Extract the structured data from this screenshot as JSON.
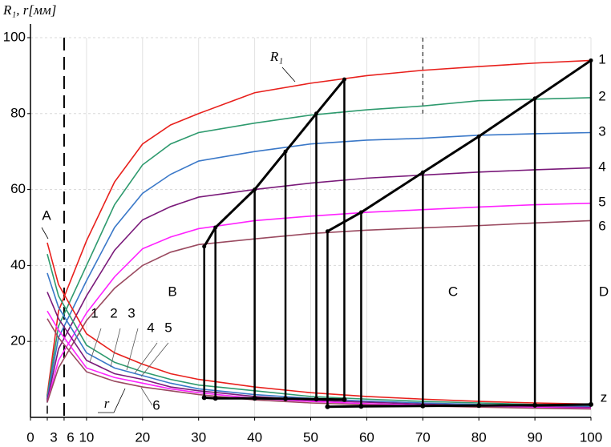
{
  "chart_data": {
    "type": "line",
    "y_label": "R₁, r[мм]",
    "xlim": [
      0,
      100
    ],
    "ylim": [
      0,
      100
    ],
    "xticks": [
      0,
      3,
      6,
      10,
      20,
      30,
      40,
      50,
      60,
      70,
      80,
      90,
      100
    ],
    "yticks": [
      20,
      40,
      60,
      80,
      100
    ],
    "grid": true,
    "x": [
      3,
      5,
      10,
      15,
      20,
      25,
      30,
      40,
      50,
      60,
      70,
      80,
      90,
      100
    ],
    "series": [
      {
        "name": "1",
        "color": "#e8201c",
        "values": [
          6,
          28,
          46.5,
          62,
          72,
          77,
          80,
          85.5,
          88,
          90,
          91.4,
          92.4,
          93.3,
          94
        ]
      },
      {
        "name": "2",
        "color": "#2e9a6e",
        "values": [
          5.5,
          24,
          40,
          56,
          66.5,
          72,
          75,
          77.5,
          79.6,
          81,
          82,
          83.4,
          83.8,
          84.2
        ]
      },
      {
        "name": "3",
        "color": "#3a78c8",
        "values": [
          5,
          21,
          36,
          50,
          59,
          64,
          67.5,
          70,
          72,
          73,
          73.5,
          74.3,
          74.7,
          75
        ]
      },
      {
        "name": "4",
        "color": "#7a1a7a",
        "values": [
          4.5,
          18,
          32,
          44,
          52,
          55.5,
          58,
          60,
          61.7,
          63,
          63.8,
          64.6,
          65.2,
          65.7
        ]
      },
      {
        "name": "5",
        "color": "#ff22ff",
        "values": [
          4,
          15,
          27.5,
          37,
          44.4,
          47.5,
          49.7,
          51.8,
          53,
          54,
          54.7,
          55.4,
          56,
          56.4
        ]
      },
      {
        "name": "6",
        "color": "#9a4a60",
        "values": [
          4,
          13,
          25.5,
          34,
          40,
          43.5,
          45.5,
          47,
          48.4,
          49.3,
          49.9,
          50.5,
          51.2,
          51.8
        ]
      },
      {
        "name": "1",
        "color": "#e8201c",
        "values": [
          46,
          35,
          22,
          17,
          14,
          11.5,
          10,
          8,
          6.5,
          5.5,
          4.8,
          4.2,
          3.8,
          3.5
        ]
      },
      {
        "name": "2",
        "color": "#2e9a6e",
        "values": [
          43,
          32,
          19,
          14.5,
          12,
          10,
          8.5,
          7,
          5.5,
          4.8,
          4.2,
          3.8,
          3.4,
          3.1
        ]
      },
      {
        "name": "3",
        "color": "#3a78c8",
        "values": [
          38,
          29,
          17,
          13,
          11,
          9,
          7.5,
          6,
          5,
          4.3,
          3.8,
          3.4,
          3.1,
          2.8
        ]
      },
      {
        "name": "4",
        "color": "#7a1a7a",
        "values": [
          33,
          26,
          15,
          11.5,
          10,
          8,
          7,
          5.5,
          4.5,
          4,
          3.5,
          3.1,
          2.8,
          2.6
        ]
      },
      {
        "name": "5",
        "color": "#ff22ff",
        "values": [
          28,
          23,
          13,
          10.5,
          9,
          7.5,
          6.5,
          5,
          4.2,
          3.6,
          3.2,
          2.9,
          2.6,
          2.4
        ]
      },
      {
        "name": "6",
        "color": "#9a4a60",
        "values": [
          26,
          21,
          12,
          9.5,
          8,
          7,
          6,
          4.6,
          3.8,
          3.3,
          3,
          2.7,
          2.4,
          2.2
        ]
      }
    ],
    "construction": [
      {
        "x": [
          31,
          33,
          40,
          45.5,
          51,
          56
        ],
        "values": [
          45,
          50,
          60,
          70,
          80,
          89
        ],
        "base": [
          5.2,
          5,
          5,
          4.9,
          4.8,
          4.7
        ]
      },
      {
        "x": [
          53,
          59,
          70,
          80,
          90,
          100
        ],
        "values": [
          49,
          54,
          64.5,
          74,
          84,
          94
        ],
        "base": [
          2.8,
          2.9,
          3,
          3.1,
          3.2,
          3.4
        ]
      }
    ],
    "divider_x": [
      6,
      70
    ],
    "annotations": [
      "A",
      "B",
      "C",
      "D",
      "z",
      "R₁",
      "r",
      "1",
      "2",
      "3",
      "4",
      "5",
      "6"
    ]
  }
}
